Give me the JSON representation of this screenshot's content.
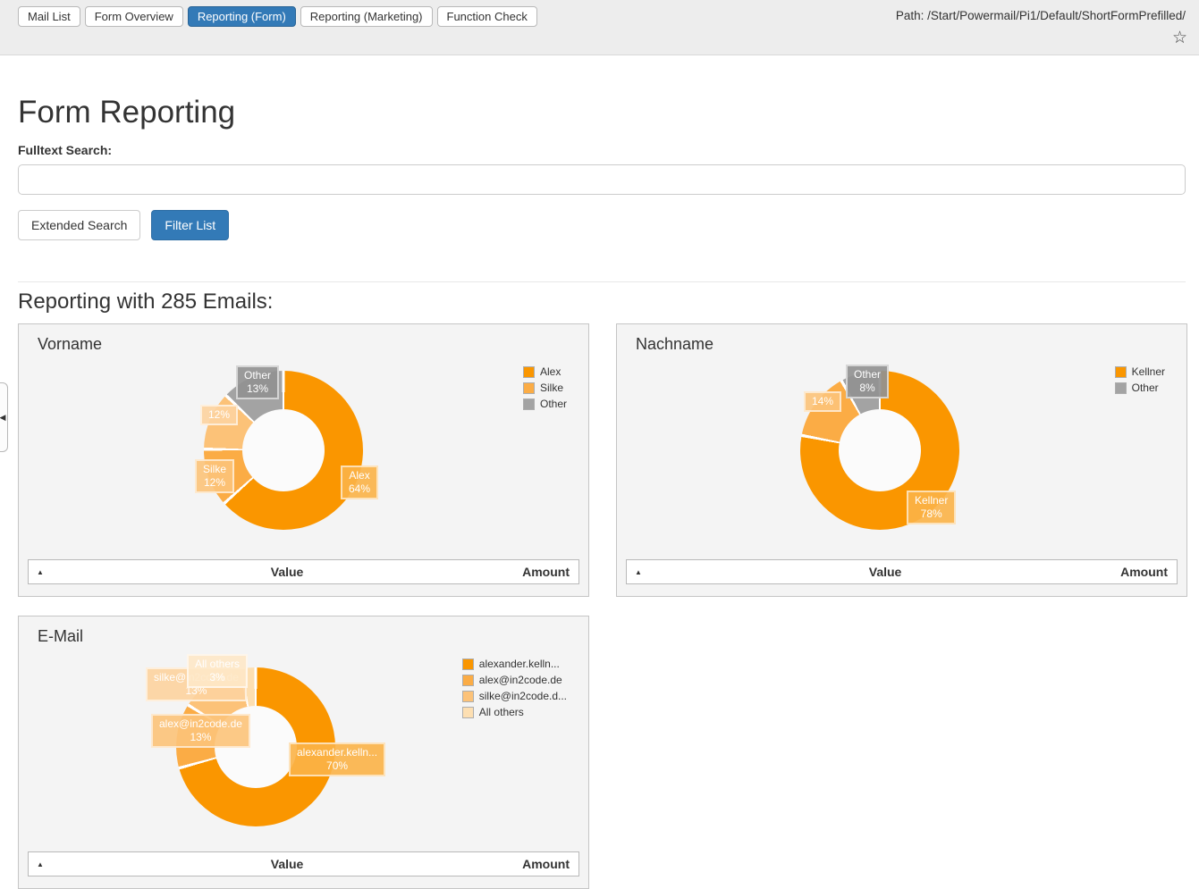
{
  "header": {
    "tabs": [
      {
        "id": "mail-list",
        "label": "Mail List",
        "active": false
      },
      {
        "id": "form-overview",
        "label": "Form Overview",
        "active": false
      },
      {
        "id": "reporting-form",
        "label": "Reporting (Form)",
        "active": true
      },
      {
        "id": "reporting-marketing",
        "label": "Reporting (Marketing)",
        "active": false
      },
      {
        "id": "function-check",
        "label": "Function Check",
        "active": false
      }
    ],
    "path": "Path: /Start/Powermail/Pi1/Default/ShortFormPrefilled/"
  },
  "icons": {
    "bookmark_star": "☆",
    "sort_asc": "▲",
    "collapse_arrow": "◀"
  },
  "page": {
    "title": "Form Reporting",
    "search_label": "Fulltext Search:",
    "search_value": "",
    "extended_search_button": "Extended Search",
    "filter_list_button": "Filter List",
    "results_heading": "Reporting with 285 Emails:"
  },
  "panel_table": {
    "value_header": "Value",
    "amount_header": "Amount"
  },
  "colors": {
    "accent_blue": "#337AB7",
    "orange_1": "#FA9600",
    "orange_2": "#FBAC45",
    "orange_3": "#FCC278",
    "orange_4": "#FDDFB2",
    "gray_slice": "#A3A3A3",
    "panel_bg": "#F4F4F4",
    "header_bg": "#EDEDED"
  },
  "chart_data": [
    {
      "type": "pie",
      "donut": true,
      "title": "Vorname",
      "legend_position": "top-right",
      "center": [
        296,
        141
      ],
      "outer_diameter": 178,
      "inner_diameter": 92,
      "table_header_visible": true,
      "slices": [
        {
          "name": "Alex",
          "percent": 64,
          "color": "#FA9600",
          "label_lines": [
            "Alex",
            "64%"
          ],
          "label_pos": [
            360,
            158
          ]
        },
        {
          "name": "Silke",
          "percent": 12,
          "color": "#FBAC45",
          "label_lines": [
            "Silke",
            "12%"
          ],
          "label_pos": [
            197,
            151
          ]
        },
        {
          "name": "",
          "percent": 12,
          "color": "#FCC278",
          "label_lines": [
            "12%"
          ],
          "label_pos": [
            203,
            90
          ]
        },
        {
          "name": "Other",
          "percent": 13,
          "color": "#A3A3A3",
          "label_lines": [
            "Other",
            "13%"
          ],
          "label_pos": [
            243,
            46
          ]
        }
      ],
      "legend": [
        {
          "label": "Alex",
          "color": "#FA9600"
        },
        {
          "label": "Silke",
          "color": "#FBAC45"
        },
        {
          "label": "Other",
          "color": "#A3A3A3"
        }
      ]
    },
    {
      "type": "pie",
      "donut": true,
      "title": "Nachname",
      "legend_position": "top-right",
      "center": [
        294,
        141
      ],
      "outer_diameter": 178,
      "inner_diameter": 92,
      "table_header_visible": true,
      "slices": [
        {
          "name": "Kellner",
          "percent": 78,
          "color": "#FA9600",
          "label_lines": [
            "Kellner",
            "78%"
          ],
          "label_pos": [
            324,
            186
          ]
        },
        {
          "name": "",
          "percent": 14,
          "color": "#FBAC45",
          "label_lines": [
            "14%"
          ],
          "label_pos": [
            209,
            75
          ]
        },
        {
          "name": "Other",
          "percent": 8,
          "color": "#A3A3A3",
          "label_lines": [
            "Other",
            "8%"
          ],
          "label_pos": [
            256,
            45
          ]
        }
      ],
      "legend": [
        {
          "label": "Kellner",
          "color": "#FA9600"
        },
        {
          "label": "Other",
          "color": "#A3A3A3"
        }
      ]
    },
    {
      "type": "pie",
      "donut": true,
      "title": "E-Mail",
      "legend_position": "top-right",
      "center": [
        265,
        146
      ],
      "outer_diameter": 178,
      "inner_diameter": 92,
      "table_header_visible": true,
      "slices": [
        {
          "name": "alexander.kelln...",
          "percent": 70,
          "color": "#FA9600",
          "label_lines": [
            "alexander.kelln...",
            "70%"
          ],
          "label_pos": [
            302,
            141
          ]
        },
        {
          "name": "alex@in2code.de",
          "percent": 13,
          "color": "#FBAC45",
          "label_lines": [
            "alex@in2code.de",
            "13%"
          ],
          "label_pos": [
            148,
            109
          ]
        },
        {
          "name": "silke@in2code.de",
          "percent": 13,
          "color": "#FCC278",
          "label_lines": [
            "silke@in2code.de",
            "13%"
          ],
          "label_pos": [
            142,
            57
          ]
        },
        {
          "name": "All others",
          "percent": 3,
          "color": "#FDDFB2",
          "label_lines": [
            "All others",
            "3%"
          ],
          "label_pos": [
            188,
            42
          ]
        }
      ],
      "legend": [
        {
          "label": "alexander.kelln...",
          "color": "#FA9600"
        },
        {
          "label": "alex@in2code.de",
          "color": "#FBAC45"
        },
        {
          "label": "silke@in2code.d...",
          "color": "#FCC278"
        },
        {
          "label": "All others",
          "color": "#FDDFB2"
        }
      ]
    }
  ]
}
